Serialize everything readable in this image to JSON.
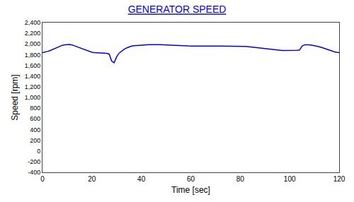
{
  "chart_data": {
    "type": "line",
    "title": "GENERATOR SPEED",
    "xlabel": "Time [sec]",
    "ylabel": "Speed [rpm]",
    "color": "#0000EE",
    "x": [
      0,
      1,
      2,
      3,
      4,
      5,
      6,
      7,
      8,
      9,
      10,
      11,
      12,
      13,
      14,
      15,
      16,
      17,
      18,
      19,
      20,
      21,
      22,
      23,
      24,
      25,
      26,
      27,
      28,
      29,
      30,
      31,
      32,
      33,
      34,
      35,
      36,
      37,
      38,
      39,
      40,
      41,
      42,
      43,
      44,
      45,
      46,
      47,
      48,
      49,
      50,
      51,
      52,
      53,
      54,
      55,
      56,
      57,
      58,
      59,
      60,
      61,
      62,
      63,
      64,
      65,
      66,
      67,
      68,
      69,
      70,
      71,
      72,
      73,
      74,
      75,
      76,
      77,
      78,
      79,
      80,
      81,
      82,
      83,
      84,
      85,
      86,
      87,
      88,
      89,
      90,
      91,
      92,
      93,
      94,
      95,
      96,
      97,
      98,
      99,
      100,
      101,
      102,
      103,
      104,
      105,
      106,
      107,
      108,
      109,
      110,
      111,
      112,
      113,
      114,
      115,
      116,
      117,
      118,
      119,
      120
    ],
    "values": [
      1840,
      1848,
      1860,
      1875,
      1895,
      1915,
      1940,
      1960,
      1975,
      1985,
      1992,
      1990,
      1982,
      1965,
      1948,
      1932,
      1915,
      1898,
      1875,
      1858,
      1845,
      1840,
      1838,
      1836,
      1835,
      1833,
      1825,
      1810,
      1680,
      1650,
      1760,
      1830,
      1870,
      1900,
      1925,
      1945,
      1960,
      1968,
      1973,
      1975,
      1978,
      1982,
      1985,
      1987,
      1989,
      1990,
      1990,
      1990,
      1988,
      1985,
      1982,
      1980,
      1978,
      1975,
      1973,
      1970,
      1968,
      1966,
      1964,
      1963,
      1962,
      1961,
      1960,
      1960,
      1960,
      1960,
      1960,
      1960,
      1960,
      1960,
      1960,
      1960,
      1960,
      1960,
      1960,
      1960,
      1960,
      1960,
      1960,
      1960,
      1960,
      1958,
      1955,
      1950,
      1945,
      1940,
      1933,
      1926,
      1920,
      1913,
      1907,
      1901,
      1895,
      1890,
      1885,
      1882,
      1880,
      1879,
      1878,
      1877,
      1876,
      1877,
      1879,
      1882,
      1887,
      1960,
      1985,
      1987,
      1984,
      1978,
      1970,
      1960,
      1948,
      1935,
      1918,
      1900,
      1882,
      1868,
      1855,
      1845,
      1840
    ],
    "xlim": [
      0,
      120
    ],
    "ylim": [
      -400,
      2400
    ],
    "xticks": [
      0,
      20,
      40,
      60,
      80,
      100,
      120
    ],
    "yticks": [
      -400,
      -200,
      0,
      200,
      400,
      600,
      800,
      {
        "value": 1000,
        "label": "1,000"
      },
      {
        "value": 1200,
        "label": "1,200"
      },
      {
        "value": 1400,
        "label": "1,400"
      },
      {
        "value": 1600,
        "label": "1,600"
      },
      {
        "value": 1800,
        "label": "1,800"
      },
      {
        "value": 2000,
        "label": "2,000"
      },
      {
        "value": 2200,
        "label": "2,200"
      },
      {
        "value": 2400,
        "label": "2,400"
      }
    ],
    "grid": false
  }
}
